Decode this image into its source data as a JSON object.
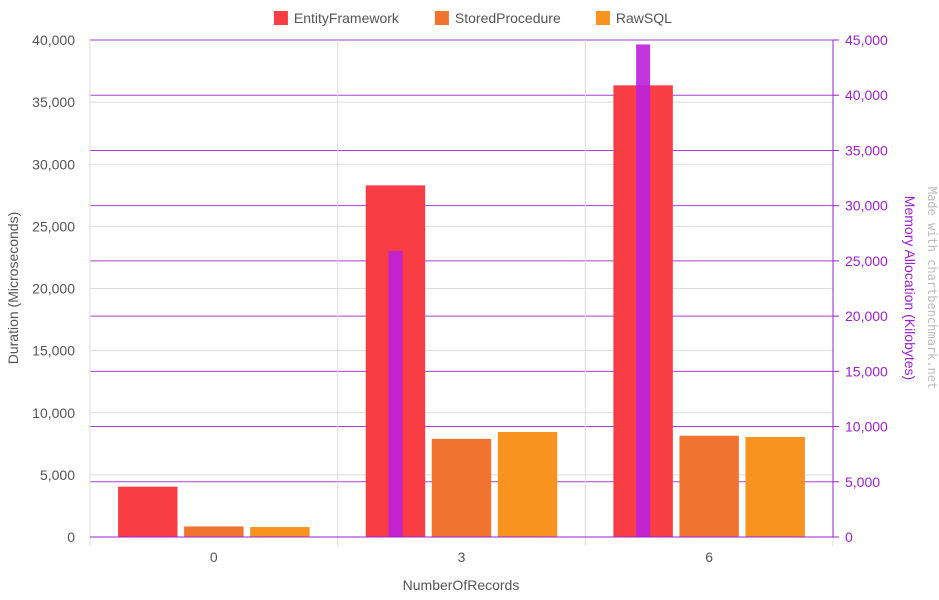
{
  "chart_data": {
    "type": "bar",
    "title": "",
    "xlabel": "NumberOfRecords",
    "ylabel": "Duration (Microseconds)",
    "y2label": "Memory Allocation (Kilobytes)",
    "categories": [
      "0",
      "3",
      "6"
    ],
    "ylim": [
      0,
      40000
    ],
    "y2lim": [
      0,
      45000
    ],
    "yticks": [
      "0",
      "5,000",
      "10,000",
      "15,000",
      "20,000",
      "25,000",
      "30,000",
      "35,000",
      "40,000"
    ],
    "y2ticks": [
      "0",
      "5,000",
      "10,000",
      "15,000",
      "20,000",
      "25,000",
      "30,000",
      "35,000",
      "40,000",
      "45,000"
    ],
    "grid": true,
    "legend_position": "top-center",
    "series": [
      {
        "name": "EntityFramework",
        "color": "#f83d44",
        "values": [
          4050,
          28300,
          36350
        ]
      },
      {
        "name": "StoredProcedure",
        "color": "#f07330",
        "values": [
          850,
          7900,
          8150
        ]
      },
      {
        "name": "RawSQL",
        "color": "#f7931e",
        "values": [
          800,
          8450,
          8050
        ]
      }
    ],
    "memory_series": {
      "color": "#bb20dd",
      "values": [
        0,
        25900,
        44600
      ]
    },
    "axis_color_secondary": "#9e1fd0",
    "watermark": "Made with chartbenchmark.net"
  }
}
